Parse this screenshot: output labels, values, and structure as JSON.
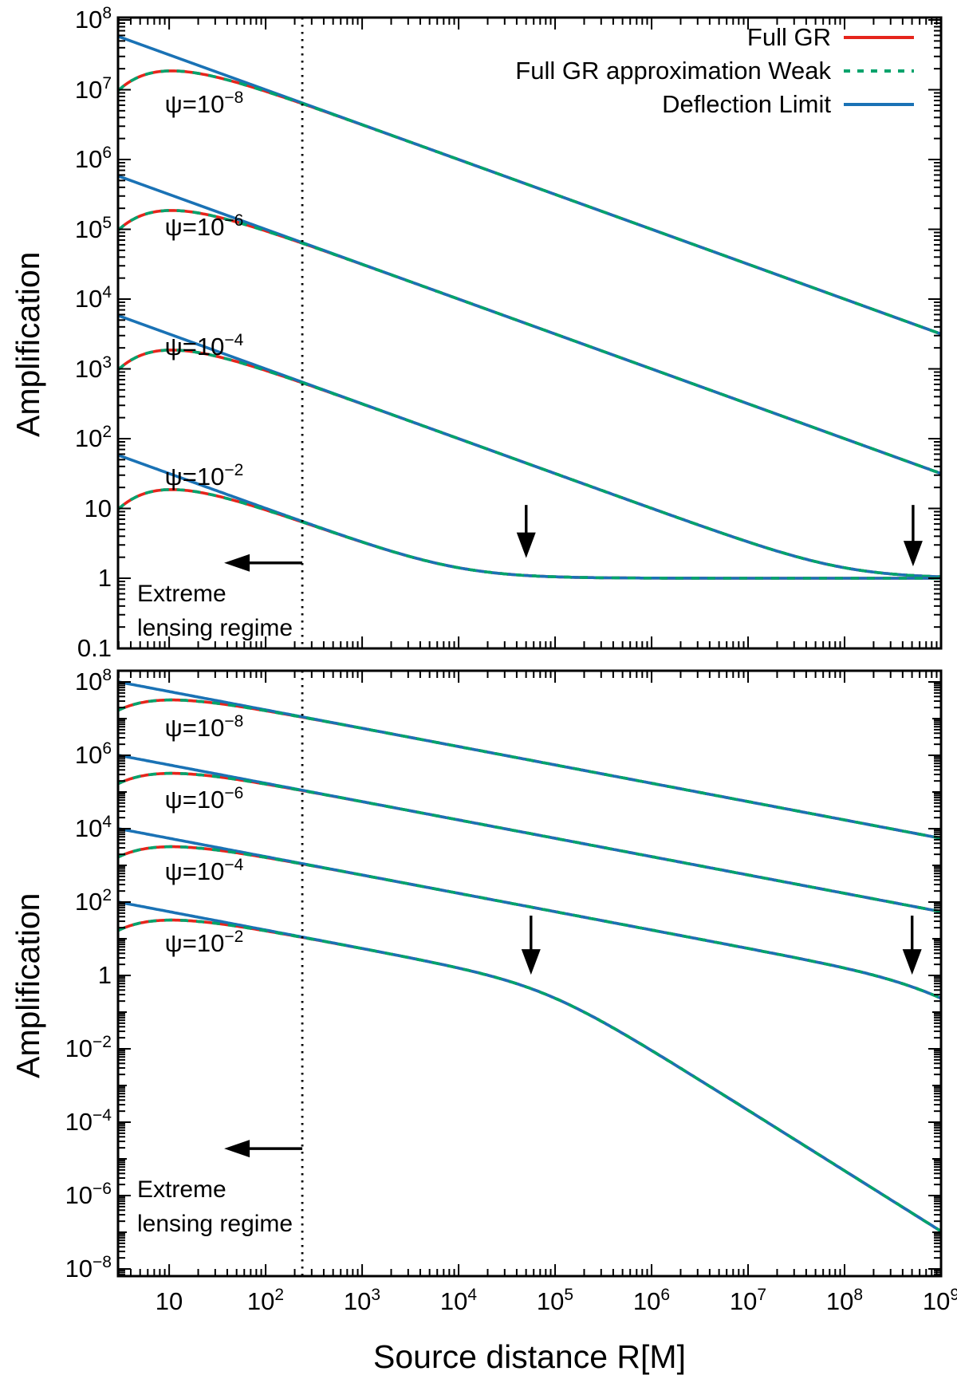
{
  "figure": {
    "background": "#ffffff",
    "axis_color": "#000000",
    "text_color": "#000000"
  },
  "legend": {
    "items": [
      {
        "label": "Full GR",
        "color": "#e5251c",
        "style": "solid"
      },
      {
        "label": "Full GR approximation Weak",
        "color": "#00a36c",
        "style": "dashed"
      },
      {
        "label": "Deflection Limit",
        "color": "#1a72b5",
        "style": "solid"
      }
    ]
  },
  "chart_data": {
    "type": "line",
    "x_axis": {
      "label": "Source distance R[M]",
      "scale": "log",
      "range": [
        3,
        1000000000.0
      ],
      "tick_labels": [
        "10",
        "10^2",
        "10^3",
        "10^4",
        "10^5",
        "10^6",
        "10^7",
        "10^8",
        "10^9"
      ],
      "tick_log10": [
        1,
        2,
        3,
        4,
        5,
        6,
        7,
        8,
        9
      ]
    },
    "series_names": [
      "Full GR",
      "Full GR approximation Weak",
      "Deflection Limit"
    ],
    "psi_values": [
      "10^-8",
      "10^-6",
      "10^-4",
      "10^-2"
    ],
    "psi_numeric": [
      1e-08,
      1e-06,
      0.0001,
      0.01
    ],
    "log10_R_samples": [
      1,
      2,
      3,
      4,
      5,
      6,
      7,
      8,
      9
    ],
    "panels": [
      {
        "position": "top",
        "y_axis": {
          "label": "Amplification",
          "scale": "log",
          "range": [
            0.1,
            100000000.0
          ],
          "tick_labels": [
            "10^8",
            "10^7",
            "10^6",
            "10^5",
            "10^4",
            "10^3",
            "10^2",
            "10",
            "1",
            "0.1"
          ],
          "tick_log10": [
            8,
            7,
            6,
            5,
            4,
            3,
            2,
            1,
            0,
            -1
          ]
        },
        "model_params": {
          "kind": "saturating",
          "damp_k": 5.3
        },
        "series": {
          "deflection_limit": {
            "1e-8": [
              32000000.0,
              10000000.0,
              3200000.0,
              1000000.0,
              320000.0,
              100000.0,
              32000.0,
              10000.0,
              3200
            ],
            "1e-6": [
              320000.0,
              100000.0,
              32000.0,
              10000.0,
              3200,
              1000,
              320,
              100,
              32
            ],
            "1e-4": [
              3200,
              1000,
              320,
              100,
              32,
              10,
              3.3,
              1.4,
              1.05
            ],
            "1e-2": [
              32,
              10,
              3.3,
              1.4,
              1.05,
              1.0,
              1.0,
              1.0,
              1.0
            ]
          },
          "full_gr": {
            "1e-8": [
              19000000.0,
              9500000.0,
              3200000.0,
              1000000.0,
              320000.0,
              100000.0,
              32000.0,
              10000.0,
              3200
            ],
            "1e-6": [
              190000.0,
              95000.0,
              32000.0,
              10000.0,
              3200,
              1000,
              320,
              100,
              32
            ],
            "1e-4": [
              1900,
              950,
              320,
              100,
              32,
              10,
              3.3,
              1.4,
              1.05
            ],
            "1e-2": [
              19,
              9.5,
              3.3,
              1.4,
              1.05,
              1.0,
              1.0,
              1.0,
              1.0
            ]
          },
          "full_gr_approximation_weak": "coincides with full_gr (drawn as dashes on top of it)"
        },
        "annotations": {
          "dotted_line_log10_R": 2.38,
          "region_label": [
            "Extreme",
            "lensing regime"
          ],
          "region_label_log10_A": [
            -0.23,
            -0.72
          ],
          "region_label_log10_R_left": 0.67,
          "left_arrow": {
            "log10_R_tail": 2.38,
            "log10_R_tip": 1.57,
            "log10_A": 0.22
          },
          "down_arrows": [
            {
              "log10_R": 4.7,
              "log10_A_tail": 1.05,
              "log10_A_tip": 0.29
            },
            {
              "log10_R": 8.71,
              "log10_A_tail": 1.05,
              "log10_A_tip": 0.17
            }
          ],
          "psi_labels": [
            {
              "text": "ψ=10^-8",
              "log10_R": 1.36,
              "log10_A": 6.77
            },
            {
              "text": "ψ=10^-6",
              "log10_R": 1.36,
              "log10_A": 5.01
            },
            {
              "text": "ψ=10^-4",
              "log10_R": 1.36,
              "log10_A": 3.29
            },
            {
              "text": "ψ=10^-2",
              "log10_R": 1.36,
              "log10_A": 1.43
            }
          ]
        }
      },
      {
        "position": "bottom",
        "y_axis": {
          "label": "Amplification",
          "scale": "log",
          "range": [
            1e-08,
            100000000.0
          ],
          "tick_labels": [
            "10^8",
            "10^6",
            "10^4",
            "10^2",
            "1",
            "10^-2",
            "10^-4",
            "10^-6",
            "10^-8"
          ],
          "tick_log10": [
            8,
            6,
            4,
            2,
            0,
            -2,
            -4,
            -6,
            -8
          ]
        },
        "model_params": {
          "kind": "steepening",
          "c": 1.73,
          "v0": 8,
          "p": 1.15,
          "damp_k": 5.3
        },
        "series": {
          "deflection_limit": {
            "1e-8": [
              55000000.0,
              17000000.0,
              5500000.0,
              1700000.0,
              550000.0,
              170000.0,
              55000.0,
              17000.0,
              5500
            ],
            "1e-6": [
              550000.0,
              170000.0,
              55000.0,
              17000.0,
              5500,
              1700,
              550,
              170,
              55
            ],
            "1e-4": [
              5500,
              1700,
              550,
              170,
              55,
              17,
              5.4,
              1.6,
              0.24
            ],
            "1e-2": [
              55,
              17,
              5.4,
              1.6,
              0.24,
              0.0089,
              0.00021,
              4.7e-06,
              1.1e-07
            ]
          },
          "full_gr": {
            "1e-8": [
              32000000.0,
              16000000.0,
              5500000.0,
              1700000.0,
              550000.0,
              170000.0,
              55000.0,
              17000.0,
              5500
            ],
            "1e-6": [
              320000.0,
              160000.0,
              55000.0,
              17000.0,
              5500,
              1700,
              550,
              170,
              55
            ],
            "1e-4": [
              3200,
              1600,
              550,
              170,
              55,
              17,
              5.4,
              1.6,
              0.24
            ],
            "1e-2": [
              32,
              16,
              5.4,
              1.6,
              0.24,
              0.0089,
              0.00021,
              4.7e-06,
              1.1e-07
            ]
          },
          "full_gr_approximation_weak": "coincides with full_gr (drawn as dashes on top of it)"
        },
        "annotations": {
          "dotted_line_log10_R": 2.38,
          "region_label": [
            "Extreme",
            "lensing regime"
          ],
          "region_label_log10_A": [
            -5.85,
            -6.78
          ],
          "region_label_log10_R_left": 0.67,
          "left_arrow": {
            "log10_R_tail": 2.38,
            "log10_R_tip": 1.57,
            "log10_A": -4.72
          },
          "down_arrows": [
            {
              "log10_R": 4.75,
              "log10_A_tail": 1.63,
              "log10_A_tip": 0.02
            },
            {
              "log10_R": 8.7,
              "log10_A_tail": 1.63,
              "log10_A_tip": 0.02
            }
          ],
          "psi_labels": [
            {
              "text": "ψ=10^-8",
              "log10_R": 1.36,
              "log10_A": 6.7
            },
            {
              "text": "ψ=10^-6",
              "log10_R": 1.36,
              "log10_A": 4.74
            },
            {
              "text": "ψ=10^-4",
              "log10_R": 1.36,
              "log10_A": 2.78
            },
            {
              "text": "ψ=10^-2",
              "log10_R": 1.36,
              "log10_A": 0.83
            }
          ]
        }
      }
    ]
  }
}
